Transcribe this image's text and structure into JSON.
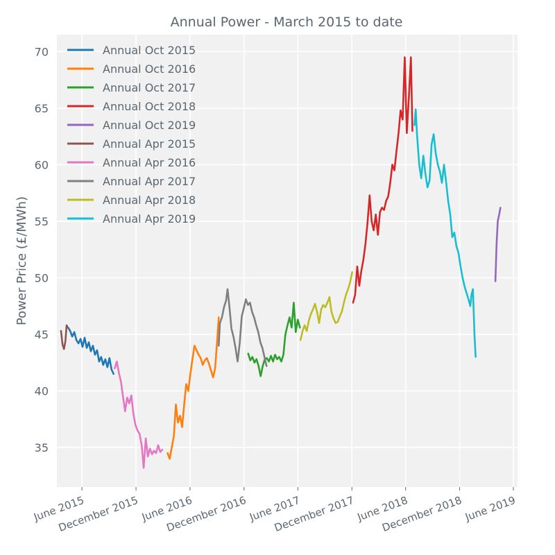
{
  "chart_data": {
    "type": "line",
    "title": "Annual Power - March 2015 to date",
    "xlabel": "",
    "ylabel": "Power Price (£/MWh)",
    "ylim": [
      31.5,
      71.5
    ],
    "xlim": [
      "2015-03-08",
      "2019-06-15"
    ],
    "grid": true,
    "legend_position": "top-left",
    "y_ticks": [
      35,
      40,
      45,
      50,
      55,
      60,
      65,
      70
    ],
    "x_ticks": [
      {
        "date": "2015-06-01",
        "label": "June 2015"
      },
      {
        "date": "2015-12-01",
        "label": "December 2015"
      },
      {
        "date": "2016-06-01",
        "label": "June 2016"
      },
      {
        "date": "2016-12-01",
        "label": "December 2016"
      },
      {
        "date": "2017-06-01",
        "label": "June 2017"
      },
      {
        "date": "2017-12-01",
        "label": "December 2017"
      },
      {
        "date": "2018-06-01",
        "label": "June 2018"
      },
      {
        "date": "2018-12-01",
        "label": "December 2018"
      },
      {
        "date": "2019-06-01",
        "label": "June 2019"
      }
    ],
    "series": [
      {
        "name": "Annual Oct 2015",
        "color": "#1f77b4",
        "points": [
          [
            "2015-04-15",
            45.6
          ],
          [
            "2015-04-22",
            45.3
          ],
          [
            "2015-04-29",
            44.8
          ],
          [
            "2015-05-06",
            45.2
          ],
          [
            "2015-05-13",
            44.5
          ],
          [
            "2015-05-20",
            44.2
          ],
          [
            "2015-05-27",
            44.6
          ],
          [
            "2015-06-03",
            43.9
          ],
          [
            "2015-06-10",
            44.7
          ],
          [
            "2015-06-17",
            43.8
          ],
          [
            "2015-06-24",
            44.3
          ],
          [
            "2015-07-01",
            43.5
          ],
          [
            "2015-07-08",
            44.0
          ],
          [
            "2015-07-15",
            43.2
          ],
          [
            "2015-07-22",
            43.6
          ],
          [
            "2015-07-29",
            42.6
          ],
          [
            "2015-08-05",
            43.0
          ],
          [
            "2015-08-12",
            42.3
          ],
          [
            "2015-08-19",
            42.8
          ],
          [
            "2015-08-26",
            42.1
          ],
          [
            "2015-09-02",
            42.9
          ],
          [
            "2015-09-09",
            41.9
          ],
          [
            "2015-09-16",
            41.5
          ]
        ]
      },
      {
        "name": "Annual Oct 2016",
        "color": "#ff7f0e",
        "points": [
          [
            "2016-03-17",
            34.5
          ],
          [
            "2016-03-24",
            34.0
          ],
          [
            "2016-03-31",
            35.0
          ],
          [
            "2016-04-07",
            36.0
          ],
          [
            "2016-04-14",
            38.8
          ],
          [
            "2016-04-21",
            37.2
          ],
          [
            "2016-04-28",
            37.8
          ],
          [
            "2016-05-05",
            36.8
          ],
          [
            "2016-05-12",
            38.8
          ],
          [
            "2016-05-19",
            40.6
          ],
          [
            "2016-05-26",
            40.0
          ],
          [
            "2016-06-02",
            41.5
          ],
          [
            "2016-06-09",
            42.8
          ],
          [
            "2016-06-16",
            44.0
          ],
          [
            "2016-06-23",
            43.6
          ],
          [
            "2016-06-30",
            43.2
          ],
          [
            "2016-07-07",
            42.9
          ],
          [
            "2016-07-14",
            42.3
          ],
          [
            "2016-07-21",
            42.7
          ],
          [
            "2016-07-28",
            42.9
          ],
          [
            "2016-08-04",
            42.4
          ],
          [
            "2016-08-11",
            41.8
          ],
          [
            "2016-08-18",
            41.2
          ],
          [
            "2016-08-25",
            42.0
          ],
          [
            "2016-09-01",
            44.5
          ],
          [
            "2016-09-06",
            46.5
          ]
        ]
      },
      {
        "name": "Annual Oct 2017",
        "color": "#2ca02c",
        "points": [
          [
            "2016-12-15",
            43.3
          ],
          [
            "2016-12-22",
            42.7
          ],
          [
            "2016-12-29",
            43.0
          ],
          [
            "2017-01-05",
            42.5
          ],
          [
            "2017-01-12",
            42.8
          ],
          [
            "2017-01-19",
            42.2
          ],
          [
            "2017-01-26",
            41.3
          ],
          [
            "2017-02-02",
            42.2
          ],
          [
            "2017-02-09",
            42.8
          ],
          [
            "2017-02-16",
            42.9
          ],
          [
            "2017-02-23",
            42.6
          ],
          [
            "2017-03-02",
            43.1
          ],
          [
            "2017-03-09",
            42.6
          ],
          [
            "2017-03-16",
            43.2
          ],
          [
            "2017-03-23",
            42.8
          ],
          [
            "2017-03-30",
            43.0
          ],
          [
            "2017-04-06",
            42.6
          ],
          [
            "2017-04-13",
            43.2
          ],
          [
            "2017-04-20",
            45.0
          ],
          [
            "2017-04-27",
            45.8
          ],
          [
            "2017-05-04",
            46.5
          ],
          [
            "2017-05-11",
            45.6
          ],
          [
            "2017-05-18",
            47.8
          ],
          [
            "2017-05-25",
            45.2
          ],
          [
            "2017-06-01",
            46.3
          ],
          [
            "2017-06-08",
            45.6
          ]
        ]
      },
      {
        "name": "Annual Oct 2018",
        "color": "#d62728",
        "points": [
          [
            "2017-12-05",
            47.8
          ],
          [
            "2017-12-12",
            48.5
          ],
          [
            "2017-12-19",
            51.0
          ],
          [
            "2017-12-26",
            49.3
          ],
          [
            "2018-01-02",
            50.6
          ],
          [
            "2018-01-09",
            51.6
          ],
          [
            "2018-01-16",
            53.0
          ],
          [
            "2018-01-23",
            54.9
          ],
          [
            "2018-01-30",
            57.3
          ],
          [
            "2018-02-06",
            55.0
          ],
          [
            "2018-02-13",
            54.2
          ],
          [
            "2018-02-20",
            55.6
          ],
          [
            "2018-02-27",
            53.8
          ],
          [
            "2018-03-06",
            55.8
          ],
          [
            "2018-03-13",
            56.2
          ],
          [
            "2018-03-20",
            56.0
          ],
          [
            "2018-03-27",
            56.8
          ],
          [
            "2018-04-03",
            57.2
          ],
          [
            "2018-04-10",
            58.4
          ],
          [
            "2018-04-17",
            60.0
          ],
          [
            "2018-04-24",
            59.5
          ],
          [
            "2018-05-01",
            61.2
          ],
          [
            "2018-05-08",
            62.8
          ],
          [
            "2018-05-15",
            64.8
          ],
          [
            "2018-05-22",
            64.0
          ],
          [
            "2018-05-29",
            69.5
          ],
          [
            "2018-06-05",
            62.8
          ],
          [
            "2018-06-12",
            66.0
          ],
          [
            "2018-06-19",
            69.5
          ],
          [
            "2018-06-24",
            63.0
          ]
        ]
      },
      {
        "name": "Annual Oct 2019",
        "color": "#9467bd",
        "points": [
          [
            "2019-04-01",
            49.7
          ],
          [
            "2019-04-05",
            53.0
          ],
          [
            "2019-04-09",
            55.0
          ],
          [
            "2019-04-14",
            55.6
          ],
          [
            "2019-04-18",
            56.2
          ]
        ]
      },
      {
        "name": "Annual Apr 2015",
        "color": "#8c564b",
        "points": [
          [
            "2015-03-22",
            45.3
          ],
          [
            "2015-03-27",
            44.1
          ],
          [
            "2015-04-01",
            43.7
          ],
          [
            "2015-04-06",
            44.4
          ],
          [
            "2015-04-10",
            45.8
          ],
          [
            "2015-04-14",
            45.6
          ]
        ]
      },
      {
        "name": "Annual Apr 2016",
        "color": "#e377c2",
        "points": [
          [
            "2015-09-20",
            42.0
          ],
          [
            "2015-09-27",
            42.6
          ],
          [
            "2015-10-04",
            41.6
          ],
          [
            "2015-10-11",
            40.8
          ],
          [
            "2015-10-18",
            39.5
          ],
          [
            "2015-10-25",
            38.2
          ],
          [
            "2015-11-01",
            39.4
          ],
          [
            "2015-11-08",
            38.9
          ],
          [
            "2015-11-15",
            39.6
          ],
          [
            "2015-11-22",
            38.0
          ],
          [
            "2015-11-29",
            37.0
          ],
          [
            "2015-12-06",
            36.5
          ],
          [
            "2015-12-13",
            36.2
          ],
          [
            "2015-12-20",
            35.2
          ],
          [
            "2015-12-27",
            33.2
          ],
          [
            "2016-01-03",
            35.8
          ],
          [
            "2016-01-10",
            34.2
          ],
          [
            "2016-01-17",
            34.9
          ],
          [
            "2016-01-24",
            34.4
          ],
          [
            "2016-01-31",
            34.7
          ],
          [
            "2016-02-07",
            34.5
          ],
          [
            "2016-02-14",
            35.2
          ],
          [
            "2016-02-21",
            34.6
          ],
          [
            "2016-02-28",
            34.8
          ]
        ]
      },
      {
        "name": "Annual Apr 2017",
        "color": "#7f7f7f",
        "points": [
          [
            "2016-09-06",
            44.0
          ],
          [
            "2016-09-10",
            46.0
          ],
          [
            "2016-09-17",
            46.5
          ],
          [
            "2016-09-24",
            47.4
          ],
          [
            "2016-10-01",
            48.0
          ],
          [
            "2016-10-06",
            49.0
          ],
          [
            "2016-10-12",
            47.5
          ],
          [
            "2016-10-19",
            45.5
          ],
          [
            "2016-10-26",
            44.8
          ],
          [
            "2016-11-02",
            43.8
          ],
          [
            "2016-11-09",
            42.6
          ],
          [
            "2016-11-16",
            44.2
          ],
          [
            "2016-11-23",
            46.6
          ],
          [
            "2016-11-30",
            47.3
          ],
          [
            "2016-12-07",
            48.1
          ],
          [
            "2016-12-14",
            47.6
          ],
          [
            "2016-12-21",
            47.8
          ],
          [
            "2016-12-28",
            47.0
          ],
          [
            "2017-01-04",
            46.5
          ],
          [
            "2017-01-11",
            45.8
          ],
          [
            "2017-01-18",
            45.2
          ],
          [
            "2017-01-25",
            44.3
          ],
          [
            "2017-02-01",
            43.8
          ],
          [
            "2017-02-08",
            43.0
          ],
          [
            "2017-02-15",
            42.2
          ]
        ]
      },
      {
        "name": "Annual Apr 2018",
        "color": "#bcbd22",
        "points": [
          [
            "2017-06-10",
            44.5
          ],
          [
            "2017-06-17",
            45.3
          ],
          [
            "2017-06-24",
            45.8
          ],
          [
            "2017-07-01",
            45.3
          ],
          [
            "2017-07-08",
            46.2
          ],
          [
            "2017-07-15",
            46.8
          ],
          [
            "2017-07-22",
            47.2
          ],
          [
            "2017-07-29",
            47.7
          ],
          [
            "2017-08-05",
            47.0
          ],
          [
            "2017-08-12",
            46.0
          ],
          [
            "2017-08-19",
            47.2
          ],
          [
            "2017-08-26",
            47.6
          ],
          [
            "2017-09-02",
            47.4
          ],
          [
            "2017-09-09",
            47.8
          ],
          [
            "2017-09-16",
            48.3
          ],
          [
            "2017-09-23",
            47.0
          ],
          [
            "2017-09-30",
            46.4
          ],
          [
            "2017-10-07",
            46.0
          ],
          [
            "2017-10-14",
            46.1
          ],
          [
            "2017-10-21",
            46.6
          ],
          [
            "2017-10-28",
            47.0
          ],
          [
            "2017-11-04",
            47.8
          ],
          [
            "2017-11-11",
            48.5
          ],
          [
            "2017-11-18",
            49.0
          ],
          [
            "2017-11-25",
            49.6
          ],
          [
            "2017-12-02",
            50.5
          ]
        ]
      },
      {
        "name": "Annual Apr 2019",
        "color": "#17becf",
        "points": [
          [
            "2018-07-01",
            63.5
          ],
          [
            "2018-07-05",
            64.9
          ],
          [
            "2018-07-10",
            62.5
          ],
          [
            "2018-07-17",
            60.0
          ],
          [
            "2018-07-24",
            58.8
          ],
          [
            "2018-07-31",
            60.8
          ],
          [
            "2018-08-07",
            59.2
          ],
          [
            "2018-08-14",
            58.0
          ],
          [
            "2018-08-21",
            58.6
          ],
          [
            "2018-08-28",
            61.8
          ],
          [
            "2018-09-04",
            62.7
          ],
          [
            "2018-09-11",
            61.0
          ],
          [
            "2018-09-18",
            60.0
          ],
          [
            "2018-09-25",
            59.4
          ],
          [
            "2018-10-02",
            58.4
          ],
          [
            "2018-10-09",
            60.0
          ],
          [
            "2018-10-16",
            58.5
          ],
          [
            "2018-10-23",
            56.8
          ],
          [
            "2018-10-30",
            55.6
          ],
          [
            "2018-11-06",
            53.6
          ],
          [
            "2018-11-13",
            54.0
          ],
          [
            "2018-11-20",
            52.8
          ],
          [
            "2018-11-27",
            52.2
          ],
          [
            "2018-12-04",
            51.0
          ],
          [
            "2018-12-11",
            50.0
          ],
          [
            "2018-12-18",
            49.2
          ],
          [
            "2018-12-25",
            48.6
          ],
          [
            "2019-01-01",
            48.0
          ],
          [
            "2019-01-06",
            47.5
          ],
          [
            "2019-01-10",
            48.5
          ],
          [
            "2019-01-15",
            49.0
          ],
          [
            "2019-01-20",
            45.0
          ],
          [
            "2019-01-24",
            43.0
          ]
        ]
      }
    ]
  }
}
